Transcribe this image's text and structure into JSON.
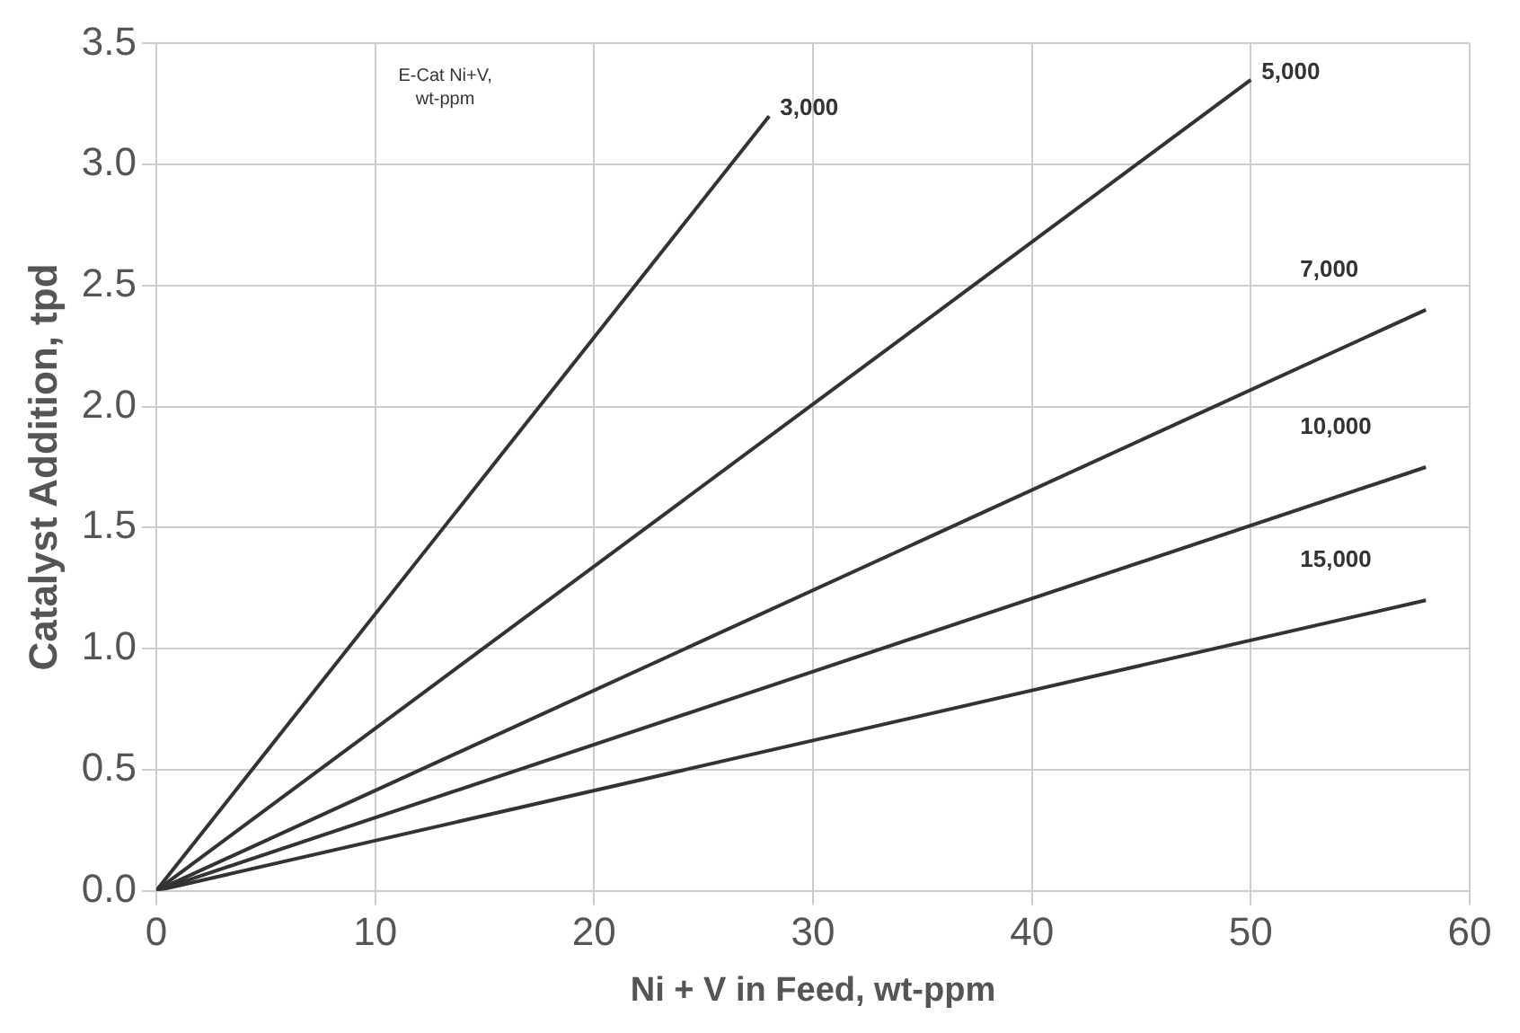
{
  "chart_data": {
    "type": "line",
    "xlabel": "Ni + V in Feed, wt-ppm",
    "ylabel": "Catalyst Addition, tpd",
    "legend_title": "E-Cat Ni+V,\nwt-ppm",
    "series": [
      {
        "name": "3,000",
        "color": "#333333",
        "x": [
          0,
          28
        ],
        "values": [
          0,
          3.2
        ]
      },
      {
        "name": "5,000",
        "color": "#333333",
        "x": [
          0,
          50
        ],
        "values": [
          0,
          3.35
        ]
      },
      {
        "name": "7,000",
        "color": "#333333",
        "x": [
          0,
          58
        ],
        "values": [
          0,
          2.4
        ]
      },
      {
        "name": "10,000",
        "color": "#333333",
        "x": [
          0,
          58
        ],
        "values": [
          0,
          1.75
        ]
      },
      {
        "name": "15,000",
        "color": "#333333",
        "x": [
          0,
          58
        ],
        "values": [
          0,
          1.2
        ]
      }
    ],
    "xlim": [
      0,
      60
    ],
    "xticks": [
      0,
      10,
      20,
      30,
      40,
      50,
      60
    ],
    "ylim": [
      0,
      3.5
    ],
    "yticks": [
      {
        "value": 0,
        "label": "0.0"
      },
      0.5,
      {
        "value": 1,
        "label": "1.0"
      },
      1.5,
      {
        "value": 2,
        "label": "2.0"
      },
      2.5,
      {
        "value": 3,
        "label": "3.0"
      },
      3.5
    ],
    "grid": true,
    "legend": false,
    "marker": "none",
    "line_style": "solid"
  }
}
